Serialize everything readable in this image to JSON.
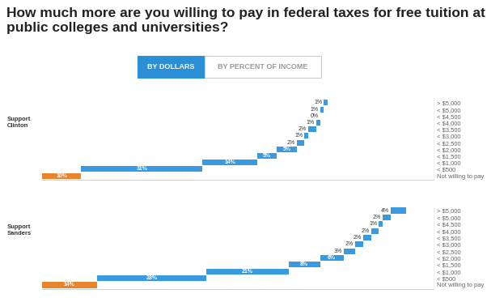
{
  "title": "How much more are you willing to pay in federal taxes for free tuition at public colleges and universities?",
  "buttons": [
    "BY DOLLARS",
    "BY PERCENT OF INCOME"
  ],
  "selected_button": "BY DOLLARS",
  "chart_data": [
    {
      "type": "bar",
      "orientation": "horizontal",
      "stacked": true,
      "title": "Support Clinton",
      "categories": [
        "Not willing to pay",
        "< $500",
        "< $1,000",
        "< $1,500",
        "< $2,000",
        "< $2,500",
        "< $3,000",
        "< $3,500",
        "< $4,000",
        "< $4,500",
        "< $5,000",
        "> $5,000"
      ],
      "values": [
        10,
        31,
        14,
        5,
        5,
        2,
        1,
        2,
        1,
        0,
        1,
        1
      ],
      "value_labels": [
        "10%",
        "31%",
        "14%",
        "5%",
        "5%",
        "2%",
        "1%",
        "2%",
        "1%",
        "0%",
        "1%",
        "1%"
      ],
      "data_labels": true,
      "colors": [
        "#e8842c",
        "#3a9ae0",
        "#3a9ae0",
        "#3a9ae0",
        "#3a9ae0",
        "#3a9ae0",
        "#3a9ae0",
        "#3a9ae0",
        "#3a9ae0",
        "#3a9ae0",
        "#3a9ae0",
        "#3a9ae0"
      ],
      "xlim": [
        0,
        100
      ],
      "xticks": [],
      "tick_labels": "y",
      "grid": false
    },
    {
      "type": "bar",
      "orientation": "horizontal",
      "stacked": true,
      "title": "Support Sanders",
      "categories": [
        "Not willing to pay",
        "< $500",
        "< $1,000",
        "< $1,500",
        "< $2,000",
        "< $2,500",
        "< $3,000",
        "< $3,500",
        "< $4,000",
        "< $4,500",
        "< $5,000",
        "> $5,000"
      ],
      "values": [
        14,
        28,
        21,
        8,
        6,
        3,
        2,
        2,
        2,
        1,
        2,
        4
      ],
      "value_labels": [
        "14%",
        "28%",
        "21%",
        "8%",
        "6%",
        "3%",
        "2%",
        "2%",
        "2%",
        "1%",
        "2%",
        "4%"
      ],
      "data_labels": true,
      "colors": [
        "#e8842c",
        "#3a9ae0",
        "#3a9ae0",
        "#3a9ae0",
        "#3a9ae0",
        "#3a9ae0",
        "#3a9ae0",
        "#3a9ae0",
        "#3a9ae0",
        "#3a9ae0",
        "#3a9ae0",
        "#3a9ae0"
      ],
      "xlim": [
        0,
        100
      ],
      "xticks": [],
      "tick_labels": "y",
      "grid": false
    }
  ]
}
